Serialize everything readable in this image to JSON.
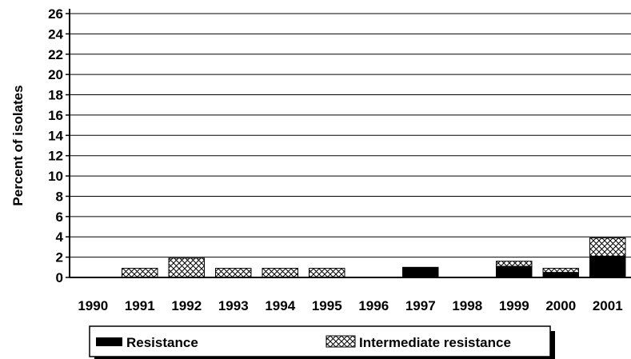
{
  "chart_data": {
    "type": "bar",
    "stacked": true,
    "categories": [
      "1990",
      "1991",
      "1992",
      "1993",
      "1994",
      "1995",
      "1996",
      "1997",
      "1998",
      "1999",
      "2000",
      "2001"
    ],
    "series": [
      {
        "name": "Resistance",
        "values": [
          0,
          0,
          0,
          0,
          0,
          0,
          0,
          1.0,
          0,
          1.1,
          0.5,
          2.1
        ],
        "color": "#000000",
        "pattern": "solid"
      },
      {
        "name": "Intermediate resistance",
        "values": [
          0,
          0.9,
          1.9,
          0.9,
          0.9,
          0.9,
          0,
          0,
          0,
          0.5,
          0.4,
          1.8
        ],
        "color": "#000000",
        "pattern": "crosshatch"
      }
    ],
    "ylabel": "Percent of isolates",
    "xlabel": "",
    "title": "",
    "ylim": [
      0,
      26
    ],
    "yticks": [
      0,
      2,
      4,
      6,
      8,
      10,
      12,
      14,
      16,
      18,
      20,
      22,
      24,
      26
    ],
    "grid": true,
    "legend_position": "bottom"
  }
}
